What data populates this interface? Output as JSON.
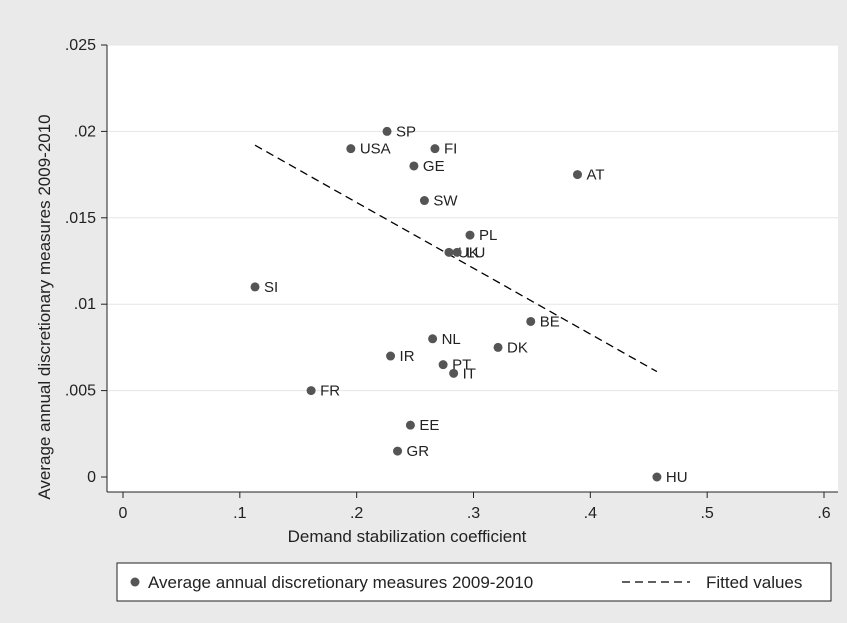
{
  "chart_data": {
    "type": "scatter",
    "xlabel": "Demand stabilization coefficient",
    "ylabel": "Average annual discretionary measures 2009-2010",
    "xlim": [
      0,
      0.6
    ],
    "ylim": [
      0,
      0.025
    ],
    "xticks": [
      0,
      0.1,
      0.2,
      0.3,
      0.4,
      0.5,
      0.6
    ],
    "xtick_labels": [
      "0",
      ".1",
      ".2",
      ".3",
      ".4",
      ".5",
      ".6"
    ],
    "yticks": [
      0,
      0.005,
      0.01,
      0.015,
      0.02,
      0.025
    ],
    "ytick_labels": [
      "0",
      ".005",
      ".01",
      ".015",
      ".02",
      ".025"
    ],
    "grid": "horizontal",
    "series": [
      {
        "name": "Average annual discretionary measures 2009-2010",
        "type": "scatter",
        "color": "#555555",
        "points": [
          {
            "label": "SP",
            "x": 0.226,
            "y": 0.02
          },
          {
            "label": "USA",
            "x": 0.195,
            "y": 0.019
          },
          {
            "label": "FI",
            "x": 0.267,
            "y": 0.019
          },
          {
            "label": "GE",
            "x": 0.249,
            "y": 0.018
          },
          {
            "label": "AT",
            "x": 0.389,
            "y": 0.0175
          },
          {
            "label": "SW",
            "x": 0.258,
            "y": 0.016
          },
          {
            "label": "PL",
            "x": 0.297,
            "y": 0.014
          },
          {
            "label": "UK",
            "x": 0.279,
            "y": 0.013
          },
          {
            "label": "LU",
            "x": 0.286,
            "y": 0.013
          },
          {
            "label": "SI",
            "x": 0.113,
            "y": 0.011
          },
          {
            "label": "BE",
            "x": 0.349,
            "y": 0.009
          },
          {
            "label": "NL",
            "x": 0.265,
            "y": 0.008
          },
          {
            "label": "DK",
            "x": 0.321,
            "y": 0.0075
          },
          {
            "label": "IR",
            "x": 0.229,
            "y": 0.007
          },
          {
            "label": "PT",
            "x": 0.274,
            "y": 0.0065
          },
          {
            "label": "IT",
            "x": 0.283,
            "y": 0.006
          },
          {
            "label": "FR",
            "x": 0.161,
            "y": 0.005
          },
          {
            "label": "EE",
            "x": 0.246,
            "y": 0.003
          },
          {
            "label": "GR",
            "x": 0.235,
            "y": 0.0015
          },
          {
            "label": "HU",
            "x": 0.457,
            "y": 0.0
          }
        ]
      },
      {
        "name": "Fitted values",
        "type": "line",
        "style": "dashed",
        "color": "#000000",
        "x": [
          0.113,
          0.457
        ],
        "y": [
          0.0192,
          0.0061
        ]
      }
    ],
    "legend": {
      "position": "bottom",
      "entries": [
        "Average annual discretionary measures 2009-2010",
        "Fitted values"
      ]
    }
  }
}
